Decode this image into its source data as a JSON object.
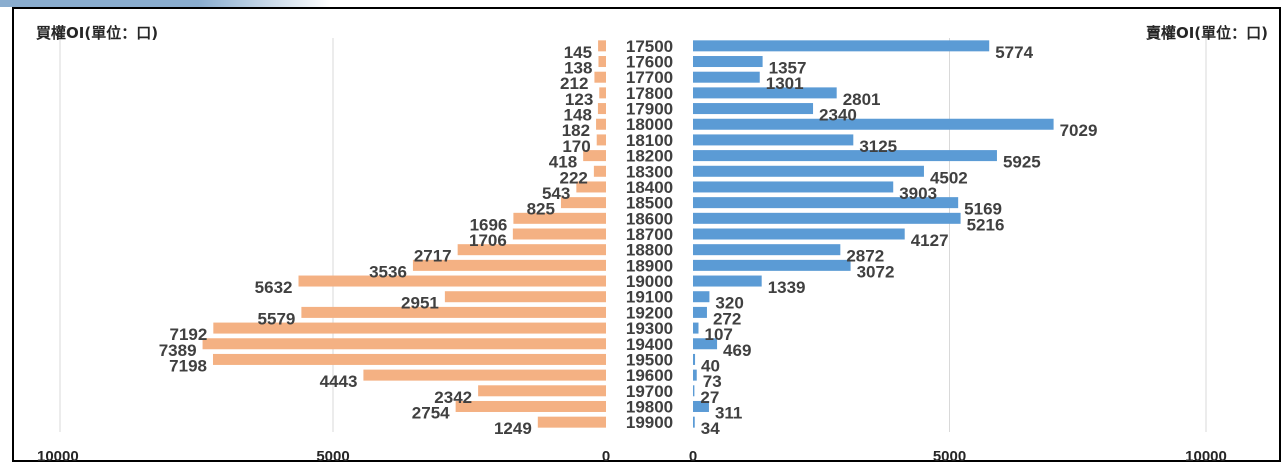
{
  "chart_data": {
    "type": "bar",
    "orientation": "horizontal-butterfly",
    "left_title": "買權OI(單位：口)",
    "right_title": "賣權OI(單位：口)",
    "categories": [
      "17500",
      "17600",
      "17700",
      "17800",
      "17900",
      "18000",
      "18100",
      "18200",
      "18300",
      "18400",
      "18500",
      "18600",
      "18700",
      "18800",
      "18900",
      "19000",
      "19100",
      "19200",
      "19300",
      "19400",
      "19500",
      "19600",
      "19700",
      "19800",
      "19900"
    ],
    "series": [
      {
        "values": [
          145,
          138,
          212,
          123,
          148,
          182,
          170,
          418,
          222,
          543,
          825,
          1696,
          1706,
          2717,
          3536,
          5632,
          2951,
          5579,
          7192,
          7389,
          7198,
          4443,
          2342,
          2754,
          1249
        ],
        "color": "#f4b183"
      },
      {
        "values": [
          5774,
          1357,
          1301,
          2801,
          2340,
          7029,
          3125,
          5925,
          4502,
          3903,
          5169,
          5216,
          4127,
          2872,
          3072,
          1339,
          320,
          272,
          107,
          469,
          40,
          73,
          27,
          311,
          34
        ],
        "color": "#5b9bd5"
      }
    ],
    "left_axis_ticks": [
      "10000",
      "5000",
      "0"
    ],
    "right_axis_ticks": [
      "0",
      "5000",
      "10000"
    ],
    "xlim": [
      0,
      10000
    ],
    "grid": true,
    "legend": "none"
  }
}
